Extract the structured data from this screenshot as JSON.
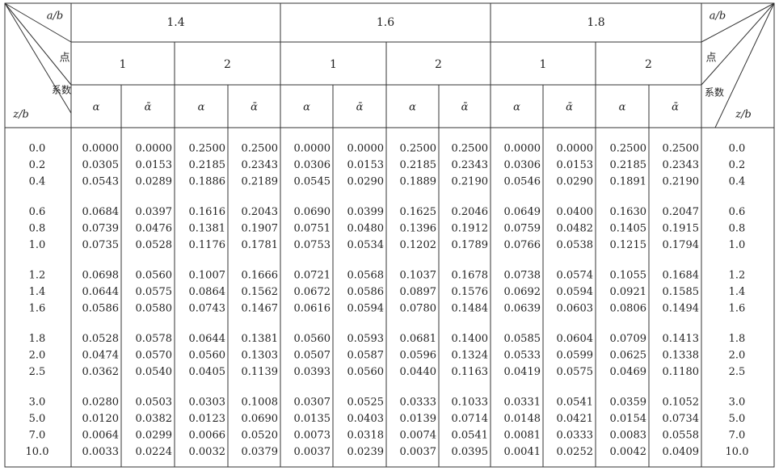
{
  "header": {
    "corner_left": {
      "ratio": "a/b",
      "point": "点",
      "coef": "系数",
      "depth": "z/b"
    },
    "corner_right": {
      "ratio": "a/b",
      "point": "点",
      "coef": "系数",
      "depth": "z/b"
    },
    "groups": [
      {
        "label": "1.4",
        "points": [
          {
            "label": "1",
            "coefficients": [
              "α",
              "ᾱ"
            ]
          },
          {
            "label": "2",
            "coefficients": [
              "α",
              "ᾱ"
            ]
          }
        ]
      },
      {
        "label": "1.6",
        "points": [
          {
            "label": "1",
            "coefficients": [
              "α",
              "ᾱ"
            ]
          },
          {
            "label": "2",
            "coefficients": [
              "α",
              "ᾱ"
            ]
          }
        ]
      },
      {
        "label": "1.8",
        "points": [
          {
            "label": "1",
            "coefficients": [
              "α",
              "ᾱ"
            ]
          },
          {
            "label": "2",
            "coefficients": [
              "α",
              "ᾱ"
            ]
          }
        ]
      }
    ]
  },
  "row_groups": [
    [
      {
        "z": "0.0",
        "values": [
          "0.0000",
          "0.0000",
          "0.2500",
          "0.2500",
          "0.0000",
          "0.0000",
          "0.2500",
          "0.2500",
          "0.0000",
          "0.0000",
          "0.2500",
          "0.2500"
        ]
      },
      {
        "z": "0.2",
        "values": [
          "0.0305",
          "0.0153",
          "0.2185",
          "0.2343",
          "0.0306",
          "0.0153",
          "0.2185",
          "0.2343",
          "0.0306",
          "0.0153",
          "0.2185",
          "0.2343"
        ]
      },
      {
        "z": "0.4",
        "values": [
          "0.0543",
          "0.0289",
          "0.1886",
          "0.2189",
          "0.0545",
          "0.0290",
          "0.1889",
          "0.2190",
          "0.0546",
          "0.0290",
          "0.1891",
          "0.2190"
        ]
      }
    ],
    [
      {
        "z": "0.6",
        "values": [
          "0.0684",
          "0.0397",
          "0.1616",
          "0.2043",
          "0.0690",
          "0.0399",
          "0.1625",
          "0.2046",
          "0.0649",
          "0.0400",
          "0.1630",
          "0.2047"
        ]
      },
      {
        "z": "0.8",
        "values": [
          "0.0739",
          "0.0476",
          "0.1381",
          "0.1907",
          "0.0751",
          "0.0480",
          "0.1396",
          "0.1912",
          "0.0759",
          "0.0482",
          "0.1405",
          "0.1915"
        ]
      },
      {
        "z": "1.0",
        "values": [
          "0.0735",
          "0.0528",
          "0.1176",
          "0.1781",
          "0.0753",
          "0.0534",
          "0.1202",
          "0.1789",
          "0.0766",
          "0.0538",
          "0.1215",
          "0.1794"
        ]
      }
    ],
    [
      {
        "z": "1.2",
        "values": [
          "0.0698",
          "0.0560",
          "0.1007",
          "0.1666",
          "0.0721",
          "0.0568",
          "0.1037",
          "0.1678",
          "0.0738",
          "0.0574",
          "0.1055",
          "0.1684"
        ]
      },
      {
        "z": "1.4",
        "values": [
          "0.0644",
          "0.0575",
          "0.0864",
          "0.1562",
          "0.0672",
          "0.0586",
          "0.0897",
          "0.1576",
          "0.0692",
          "0.0594",
          "0.0921",
          "0.1585"
        ]
      },
      {
        "z": "1.6",
        "values": [
          "0.0586",
          "0.0580",
          "0.0743",
          "0.1467",
          "0.0616",
          "0.0594",
          "0.0780",
          "0.1484",
          "0.0639",
          "0.0603",
          "0.0806",
          "0.1494"
        ]
      }
    ],
    [
      {
        "z": "1.8",
        "values": [
          "0.0528",
          "0.0578",
          "0.0644",
          "0.1381",
          "0.0560",
          "0.0593",
          "0.0681",
          "0.1400",
          "0.0585",
          "0.0604",
          "0.0709",
          "0.1413"
        ]
      },
      {
        "z": "2.0",
        "values": [
          "0.0474",
          "0.0570",
          "0.0560",
          "0.1303",
          "0.0507",
          "0.0587",
          "0.0596",
          "0.1324",
          "0.0533",
          "0.0599",
          "0.0625",
          "0.1338"
        ]
      },
      {
        "z": "2.5",
        "values": [
          "0.0362",
          "0.0540",
          "0.0405",
          "0.1139",
          "0.0393",
          "0.0560",
          "0.0440",
          "0.1163",
          "0.0419",
          "0.0575",
          "0.0469",
          "0.1180"
        ]
      }
    ],
    [
      {
        "z": "3.0",
        "values": [
          "0.0280",
          "0.0503",
          "0.0303",
          "0.1008",
          "0.0307",
          "0.0525",
          "0.0333",
          "0.1033",
          "0.0331",
          "0.0541",
          "0.0359",
          "0.1052"
        ]
      },
      {
        "z": "5.0",
        "values": [
          "0.0120",
          "0.0382",
          "0.0123",
          "0.0690",
          "0.0135",
          "0.0403",
          "0.0139",
          "0.0714",
          "0.0148",
          "0.0421",
          "0.0154",
          "0.0734"
        ]
      },
      {
        "z": "7.0",
        "values": [
          "0.0064",
          "0.0299",
          "0.0066",
          "0.0520",
          "0.0073",
          "0.0318",
          "0.0074",
          "0.0541",
          "0.0081",
          "0.0333",
          "0.0083",
          "0.0558"
        ]
      },
      {
        "z": "10.0",
        "values": [
          "0.0033",
          "0.0224",
          "0.0032",
          "0.0379",
          "0.0037",
          "0.0239",
          "0.0037",
          "0.0395",
          "0.0041",
          "0.0252",
          "0.0042",
          "0.0409"
        ]
      }
    ]
  ]
}
